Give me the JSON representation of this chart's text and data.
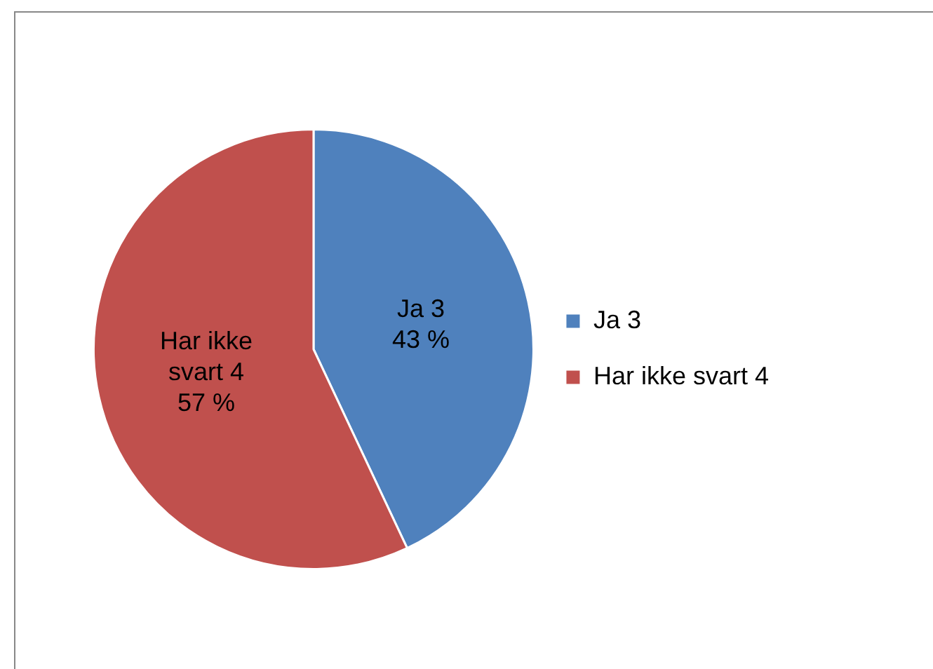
{
  "chart_data": {
    "type": "pie",
    "categories": [
      "Ja 3",
      "Har ikke svart 4"
    ],
    "values": [
      43,
      57
    ],
    "value_labels": [
      "43 %",
      "57 %"
    ],
    "colors": [
      "#4f81bd",
      "#c0504d"
    ],
    "legend": "right"
  }
}
